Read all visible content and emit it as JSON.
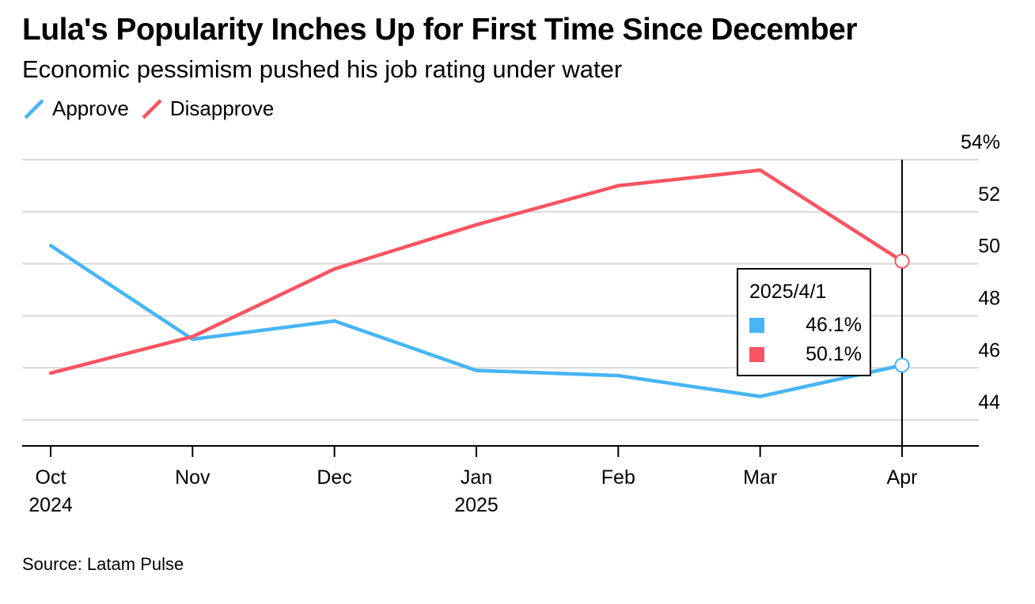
{
  "title": "Lula's Popularity Inches Up for First Time Since December",
  "subtitle": "Economic pessimism pushed his job rating under water",
  "source": "Source: Latam Pulse",
  "legend": [
    {
      "label": "Approve",
      "color": "#47b5f5"
    },
    {
      "label": "Disapprove",
      "color": "#f95461"
    }
  ],
  "tooltip": {
    "date": "2025/4/1",
    "rows": [
      {
        "value": "46.1%",
        "color": "#47b5f5"
      },
      {
        "value": "50.1%",
        "color": "#f95461"
      }
    ]
  },
  "chart_data": {
    "type": "line",
    "title": "Lula's Popularity Inches Up for First Time Since December",
    "subtitle": "Economic pessimism pushed his job rating under water",
    "x": [
      "2024-10",
      "2024-11",
      "2024-12",
      "2025-01",
      "2025-02",
      "2025-03",
      "2025-04"
    ],
    "x_tick_labels": [
      {
        "line1": "Oct",
        "line2": "2024"
      },
      {
        "line1": "Nov",
        "line2": ""
      },
      {
        "line1": "Dec",
        "line2": ""
      },
      {
        "line1": "Jan",
        "line2": "2025"
      },
      {
        "line1": "Feb",
        "line2": ""
      },
      {
        "line1": "Mar",
        "line2": ""
      },
      {
        "line1": "Apr",
        "line2": ""
      }
    ],
    "series": [
      {
        "name": "Approve",
        "color": "#47b5f5",
        "values": [
          50.7,
          47.1,
          47.8,
          45.9,
          45.7,
          44.9,
          46.1
        ]
      },
      {
        "name": "Disapprove",
        "color": "#f95461",
        "values": [
          45.8,
          47.2,
          49.8,
          51.5,
          53.0,
          53.6,
          50.1
        ]
      }
    ],
    "y_ticks": [
      44,
      46,
      48,
      50,
      52,
      54
    ],
    "y_tick_labels": [
      "44",
      "46",
      "48",
      "50",
      "52",
      "54%"
    ],
    "ylim": [
      43.0,
      54.0
    ],
    "y_axis_side": "right",
    "grid": true,
    "legend_position": "top-left",
    "highlight_index": 6
  }
}
